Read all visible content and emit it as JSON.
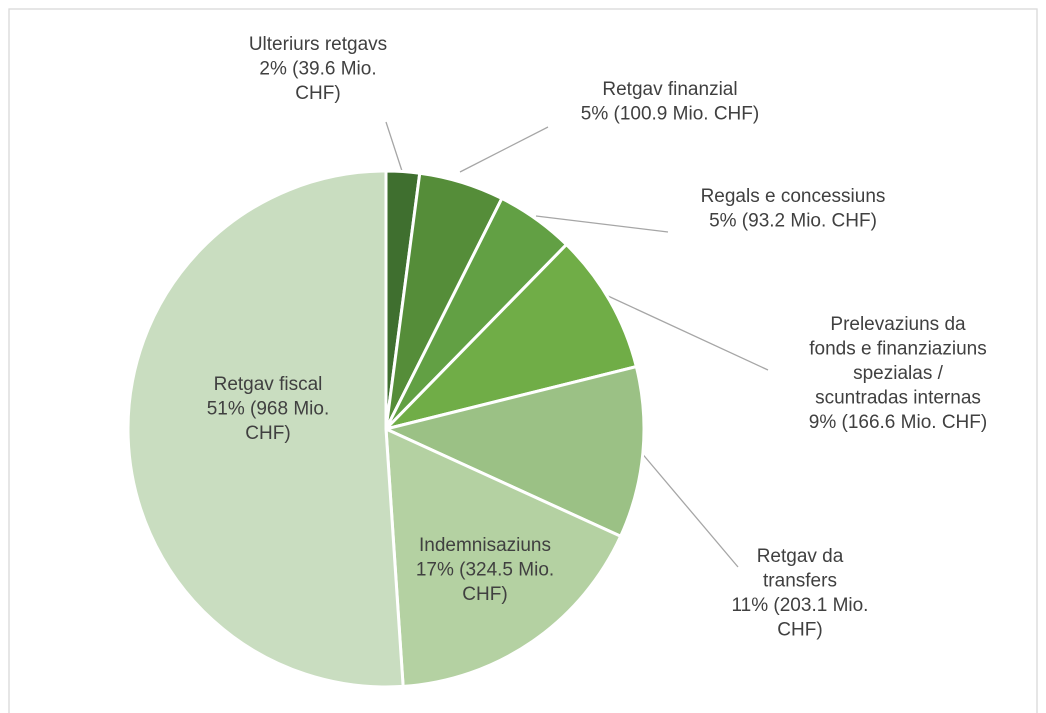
{
  "chart_data": {
    "type": "pie",
    "categories": [
      "Ulteriurs retgavs",
      "Retgav finanzial",
      "Regals e concessiuns",
      "Prelevaziuns da fonds e finanziaziuns spezialas / scuntradas internas",
      "Retgav da transfers",
      "Indemnisaziuns",
      "Retgav fiscal"
    ],
    "values": [
      39.6,
      100.9,
      93.2,
      166.6,
      203.1,
      324.5,
      968
    ],
    "value_labels": [
      "2% (39.6 Mio. CHF)",
      "5% (100.9 Mio. CHF)",
      "5% (93.2 Mio. CHF)",
      "9% (166.6 Mio. CHF)",
      "11% (203.1 Mio. CHF)",
      "17% (324.5 Mio. CHF)",
      "51% (968 Mio. CHF)"
    ],
    "colors": [
      "#3f6f2f",
      "#558d39",
      "#62a044",
      "#70ad47",
      "#9bc185",
      "#b4d1a2",
      "#c9ddc0"
    ]
  }
}
